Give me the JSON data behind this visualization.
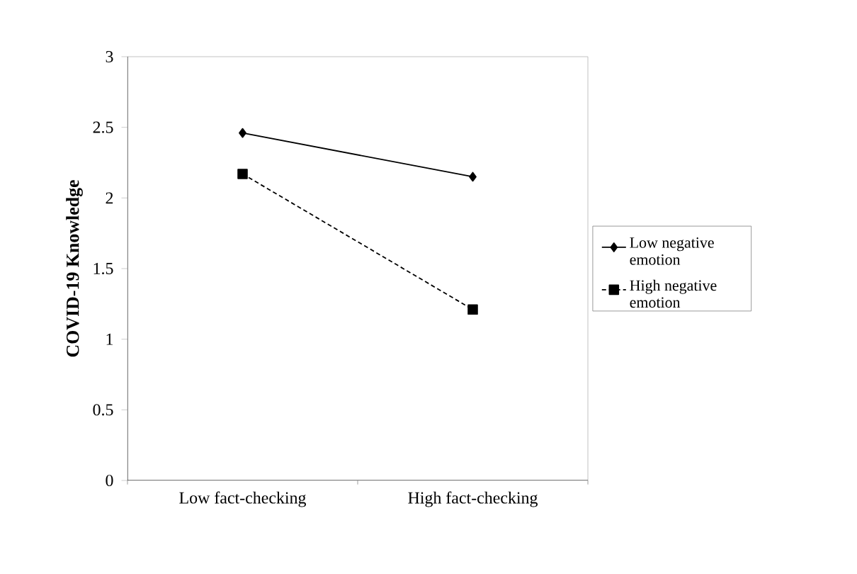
{
  "chart_data": {
    "type": "line",
    "ylabel": "COVID-19 Knowledge",
    "categories": [
      "Low fact-checking",
      "High fact-checking"
    ],
    "series": [
      {
        "name": "Low negative emotion",
        "color": "#000000",
        "values": [
          2.46,
          2.15
        ],
        "marker": "diamond",
        "line_style": "solid"
      },
      {
        "name": "High negative emotion",
        "color": "#000000",
        "values": [
          2.17,
          1.21
        ],
        "marker": "square",
        "line_style": "dashed"
      }
    ],
    "ylim": [
      0,
      3
    ],
    "yticks": [
      0,
      0.5,
      1,
      1.5,
      2,
      2.5,
      3
    ],
    "grid": false,
    "legend": "right"
  }
}
